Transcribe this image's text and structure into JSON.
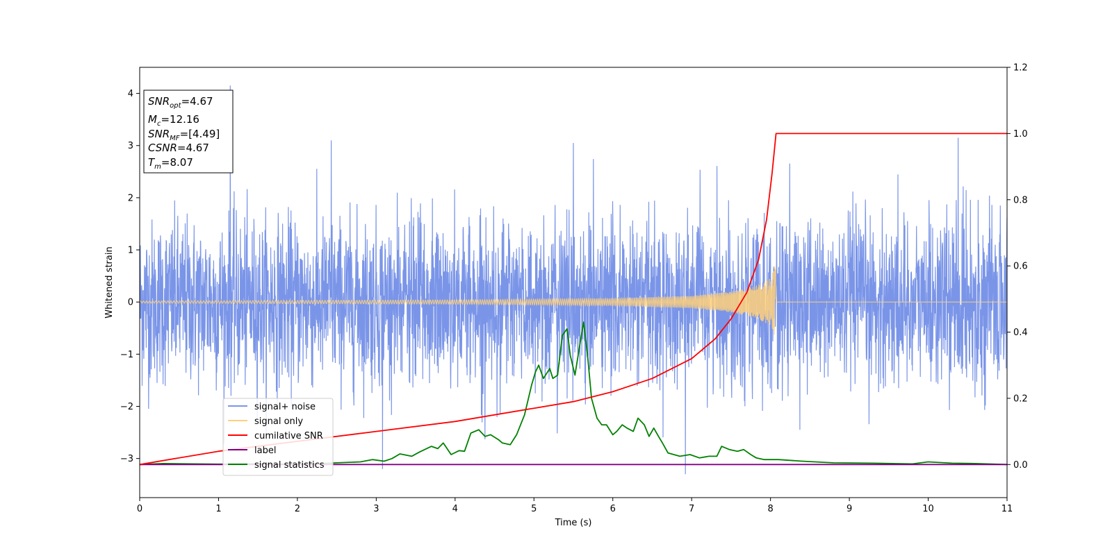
{
  "chart_data": {
    "type": "line",
    "xlabel": "Time (s)",
    "ylabel_left": "Whitened strain",
    "ylabel_right": "",
    "xlim": [
      0,
      11
    ],
    "ylim_left": [
      -3.75,
      4.5
    ],
    "ylim_right": [
      -0.1,
      1.2
    ],
    "x_ticks": [
      0,
      1,
      2,
      3,
      4,
      5,
      6,
      7,
      8,
      9,
      10,
      11
    ],
    "x_tick_labels": [
      "0",
      "1",
      "2",
      "3",
      "4",
      "5",
      "6",
      "7",
      "8",
      "9",
      "10",
      "11"
    ],
    "y_left_ticks": [
      -3,
      -2,
      -1,
      0,
      1,
      2,
      3,
      4
    ],
    "y_left_tick_labels": [
      "−3",
      "−2",
      "−1",
      "0",
      "1",
      "2",
      "3",
      "4"
    ],
    "y_right_ticks": [
      0.0,
      0.2,
      0.4,
      0.6,
      0.8,
      1.0,
      1.2
    ],
    "y_right_tick_labels": [
      "0.0",
      "0.2",
      "0.4",
      "0.6",
      "0.8",
      "1.0",
      "1.2"
    ],
    "grid": false,
    "legend_position": "lower-left",
    "legend": [
      {
        "label": "signal+ noise",
        "color": "#7a95e8"
      },
      {
        "label": "signal only",
        "color": "#ffd07a"
      },
      {
        "label": "cumilative SNR",
        "color": "#ff0000"
      },
      {
        "label": "label",
        "color": "#800080"
      },
      {
        "label": "signal statistics",
        "color": "#008000"
      }
    ],
    "annotation": {
      "position": "upper-left",
      "lines": [
        {
          "sym": "SNR",
          "sub": "opt",
          "value": "=4.67"
        },
        {
          "sym": "M",
          "sub": "c",
          "value": "=12.16"
        },
        {
          "sym": "SNR",
          "sub": "MF",
          "value": "=[4.49]"
        },
        {
          "sym": "CSNR",
          "sub": "",
          "value": "=4.67"
        },
        {
          "sym": "T",
          "sub": "m",
          "value": "=8.07"
        }
      ]
    },
    "series": [
      {
        "name": "signal+ noise",
        "axis": "left",
        "color": "#7a95e8",
        "style": "dense noise",
        "mean": 0,
        "typical_range": [
          -1.9,
          2.3
        ],
        "peaks": [
          {
            "x": 1.15,
            "y": 4.15
          },
          {
            "x": 2.43,
            "y": 3.1
          },
          {
            "x": 5.5,
            "y": 3.05
          },
          {
            "x": 10.38,
            "y": 3.15
          },
          {
            "x": 6.92,
            "y": -3.3
          },
          {
            "x": 3.08,
            "y": -3.2
          }
        ]
      },
      {
        "name": "signal only",
        "axis": "left",
        "color": "#ffd07a",
        "style": "chirp",
        "x_end": 8.07,
        "envelope": [
          [
            0,
            0.02
          ],
          [
            4,
            0.04
          ],
          [
            6,
            0.07
          ],
          [
            7,
            0.12
          ],
          [
            7.5,
            0.2
          ],
          [
            7.8,
            0.3
          ],
          [
            8.0,
            0.45
          ],
          [
            8.07,
            0.75
          ]
        ]
      },
      {
        "name": "cumilative SNR",
        "axis": "right",
        "color": "#ff0000",
        "x": [
          0,
          1,
          2,
          3,
          4,
          5,
          5.5,
          6,
          6.5,
          7,
          7.3,
          7.5,
          7.7,
          7.85,
          7.95,
          8.02,
          8.07,
          11
        ],
        "y": [
          0.0,
          0.04,
          0.07,
          0.1,
          0.13,
          0.17,
          0.19,
          0.22,
          0.26,
          0.32,
          0.38,
          0.44,
          0.52,
          0.62,
          0.74,
          0.88,
          1.0,
          1.0
        ]
      },
      {
        "name": "label",
        "axis": "right",
        "color": "#800080",
        "x": [
          0,
          11
        ],
        "y": [
          0,
          0
        ]
      },
      {
        "name": "signal statistics",
        "axis": "right",
        "color": "#008000",
        "x": [
          0,
          0.3,
          1.0,
          1.5,
          2.0,
          2.5,
          2.8,
          2.95,
          3.1,
          3.2,
          3.3,
          3.45,
          3.55,
          3.7,
          3.78,
          3.85,
          3.95,
          4.05,
          4.12,
          4.2,
          4.3,
          4.38,
          4.45,
          4.55,
          4.6,
          4.7,
          4.78,
          4.88,
          4.97,
          5.02,
          5.06,
          5.12,
          5.2,
          5.24,
          5.3,
          5.36,
          5.42,
          5.46,
          5.52,
          5.58,
          5.63,
          5.68,
          5.73,
          5.8,
          5.86,
          5.92,
          6.0,
          6.05,
          6.12,
          6.18,
          6.26,
          6.32,
          6.4,
          6.46,
          6.52,
          6.58,
          6.63,
          6.7,
          6.85,
          6.98,
          7.1,
          7.22,
          7.32,
          7.38,
          7.48,
          7.58,
          7.66,
          7.75,
          7.82,
          7.92,
          8.1,
          8.4,
          8.8,
          9.3,
          9.8,
          10.0,
          10.3,
          10.6,
          11.0
        ],
        "y": [
          0.0,
          0.003,
          0.001,
          0.002,
          0.0,
          0.005,
          0.008,
          0.015,
          0.01,
          0.018,
          0.032,
          0.025,
          0.038,
          0.055,
          0.048,
          0.065,
          0.03,
          0.042,
          0.04,
          0.095,
          0.105,
          0.085,
          0.09,
          0.075,
          0.065,
          0.06,
          0.09,
          0.15,
          0.24,
          0.28,
          0.3,
          0.26,
          0.29,
          0.26,
          0.27,
          0.39,
          0.41,
          0.33,
          0.27,
          0.36,
          0.43,
          0.33,
          0.2,
          0.14,
          0.12,
          0.12,
          0.09,
          0.1,
          0.12,
          0.11,
          0.1,
          0.14,
          0.12,
          0.085,
          0.11,
          0.085,
          0.065,
          0.035,
          0.025,
          0.03,
          0.02,
          0.025,
          0.025,
          0.055,
          0.045,
          0.04,
          0.045,
          0.03,
          0.02,
          0.015,
          0.015,
          0.01,
          0.005,
          0.004,
          0.002,
          0.008,
          0.004,
          0.003,
          0.0
        ]
      }
    ]
  }
}
